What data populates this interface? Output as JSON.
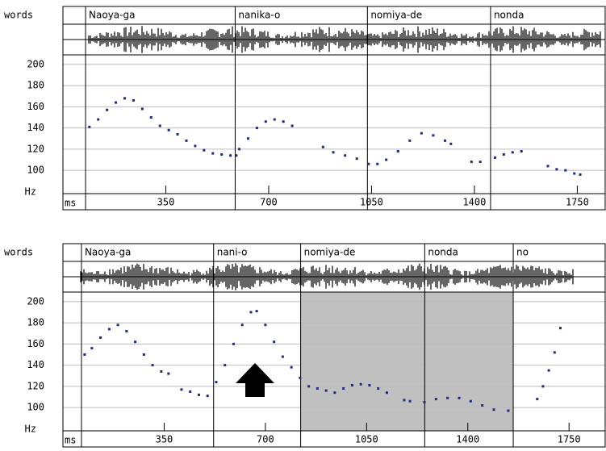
{
  "chart_data": [
    {
      "type": "scatter",
      "words_label": "words",
      "x_label": "ms",
      "y_label": "Hz",
      "color": "#1f2a80",
      "words": [
        {
          "label": "Naoya-ga",
          "start": 77
        },
        {
          "label": "nanika-o",
          "start": 586
        },
        {
          "label": "nomiya-de",
          "start": 1036
        },
        {
          "label": "nonda",
          "start": 1455
        }
      ],
      "xlim": [
        0,
        1845
      ],
      "ylim": [
        78,
        209
      ],
      "xticks": [
        350,
        700,
        1050,
        1400,
        1750
      ],
      "yticks": [
        100,
        120,
        140,
        160,
        180,
        200
      ],
      "grid": true,
      "x": [
        90,
        120,
        150,
        180,
        210,
        240,
        270,
        300,
        330,
        360,
        390,
        420,
        450,
        480,
        510,
        540,
        570,
        590,
        600,
        630,
        660,
        690,
        720,
        750,
        780,
        885,
        920,
        960,
        1000,
        1040,
        1070,
        1100,
        1140,
        1180,
        1220,
        1260,
        1300,
        1320,
        1390,
        1420,
        1470,
        1500,
        1530,
        1560,
        1650,
        1680,
        1710,
        1740,
        1760
      ],
      "y": [
        141,
        148,
        157,
        164,
        168,
        166,
        158,
        150,
        142,
        138,
        134,
        128,
        123,
        119,
        116,
        115,
        114,
        114,
        120,
        130,
        140,
        146,
        148,
        146,
        142,
        122,
        117,
        114,
        111,
        106,
        106,
        110,
        118,
        128,
        135,
        133,
        128,
        125,
        108,
        108,
        112,
        115,
        117,
        118,
        104,
        101,
        100,
        97,
        96
      ]
    },
    {
      "type": "scatter",
      "words_label": "words",
      "x_label": "ms",
      "y_label": "Hz",
      "color": "#1f2a80",
      "words": [
        {
          "label": "Naoya-ga",
          "start": 64
        },
        {
          "label": "nani-o",
          "start": 521
        },
        {
          "label": "nomiya-de",
          "start": 822
        },
        {
          "label": "nonda",
          "start": 1251
        },
        {
          "label": "no",
          "start": 1557
        }
      ],
      "shaded": [
        [
          822,
          1251
        ],
        [
          1251,
          1557
        ]
      ],
      "shade_color": "#c0c0c0",
      "xlim": [
        0,
        1875
      ],
      "ylim": [
        78,
        209
      ],
      "xticks": [
        350,
        700,
        1050,
        1400,
        1750
      ],
      "yticks": [
        100,
        120,
        140,
        160,
        180,
        200
      ],
      "grid": true,
      "x": [
        75,
        100,
        130,
        160,
        190,
        220,
        250,
        280,
        310,
        340,
        365,
        410,
        440,
        470,
        500,
        530,
        560,
        590,
        620,
        650,
        670,
        700,
        730,
        760,
        790,
        820,
        850,
        880,
        910,
        940,
        970,
        1000,
        1030,
        1060,
        1090,
        1120,
        1180,
        1200,
        1250,
        1290,
        1330,
        1370,
        1410,
        1450,
        1490,
        1540,
        1640,
        1660,
        1680,
        1700,
        1720
      ],
      "y": [
        150,
        156,
        166,
        174,
        178,
        172,
        162,
        150,
        140,
        134,
        132,
        117,
        115,
        112,
        111,
        124,
        140,
        160,
        178,
        190,
        191,
        178,
        162,
        148,
        138,
        128,
        120,
        118,
        116,
        114,
        118,
        121,
        122,
        121,
        118,
        114,
        107,
        106,
        105,
        108,
        109,
        109,
        106,
        102,
        98,
        97,
        108,
        120,
        135,
        152,
        175
      ]
    }
  ]
}
